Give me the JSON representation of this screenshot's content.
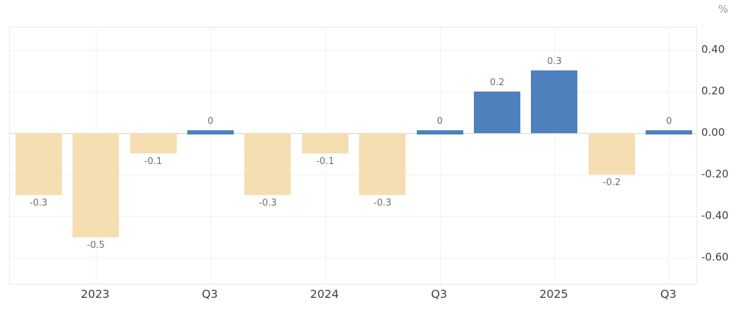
{
  "chart_data": {
    "type": "bar",
    "title": "",
    "unit": "%",
    "legend": "none",
    "grid": true,
    "values": [
      -0.3,
      -0.5,
      -0.1,
      0,
      -0.3,
      -0.1,
      -0.3,
      0,
      0.2,
      0.3,
      -0.2,
      0
    ],
    "value_labels": [
      "-0.3",
      "-0.5",
      "-0.1",
      "0",
      "-0.3",
      "-0.1",
      "-0.3",
      "0",
      "0.2",
      "0.3",
      "-0.2",
      "0"
    ],
    "x_axis": {
      "tick_labels": [
        "2023",
        "Q3",
        "2024",
        "Q3",
        "2025",
        "Q3"
      ],
      "tick_bar_indices": [
        1,
        3,
        5,
        7,
        9,
        11
      ]
    },
    "y_axis": {
      "side": "right",
      "unit": "%",
      "tick_labels": [
        "0.40",
        "0.20",
        "0.00",
        "-0.20",
        "-0.40",
        "-0.60"
      ],
      "tick_values": [
        0.4,
        0.2,
        0.0,
        -0.2,
        -0.4,
        -0.6
      ]
    },
    "ylim": [
      -0.732,
      0.508
    ],
    "colors": {
      "negative_bar": "#f5dfb2",
      "nonnegative_bar": "#4e81bd",
      "grid_line": "#e5e5e5",
      "zero_line": "#d6d6d6",
      "plot_border": "#e8e8e8",
      "axis_label": "#3f3f3f",
      "value_label": "#707070",
      "unit_label": "#999999"
    }
  }
}
